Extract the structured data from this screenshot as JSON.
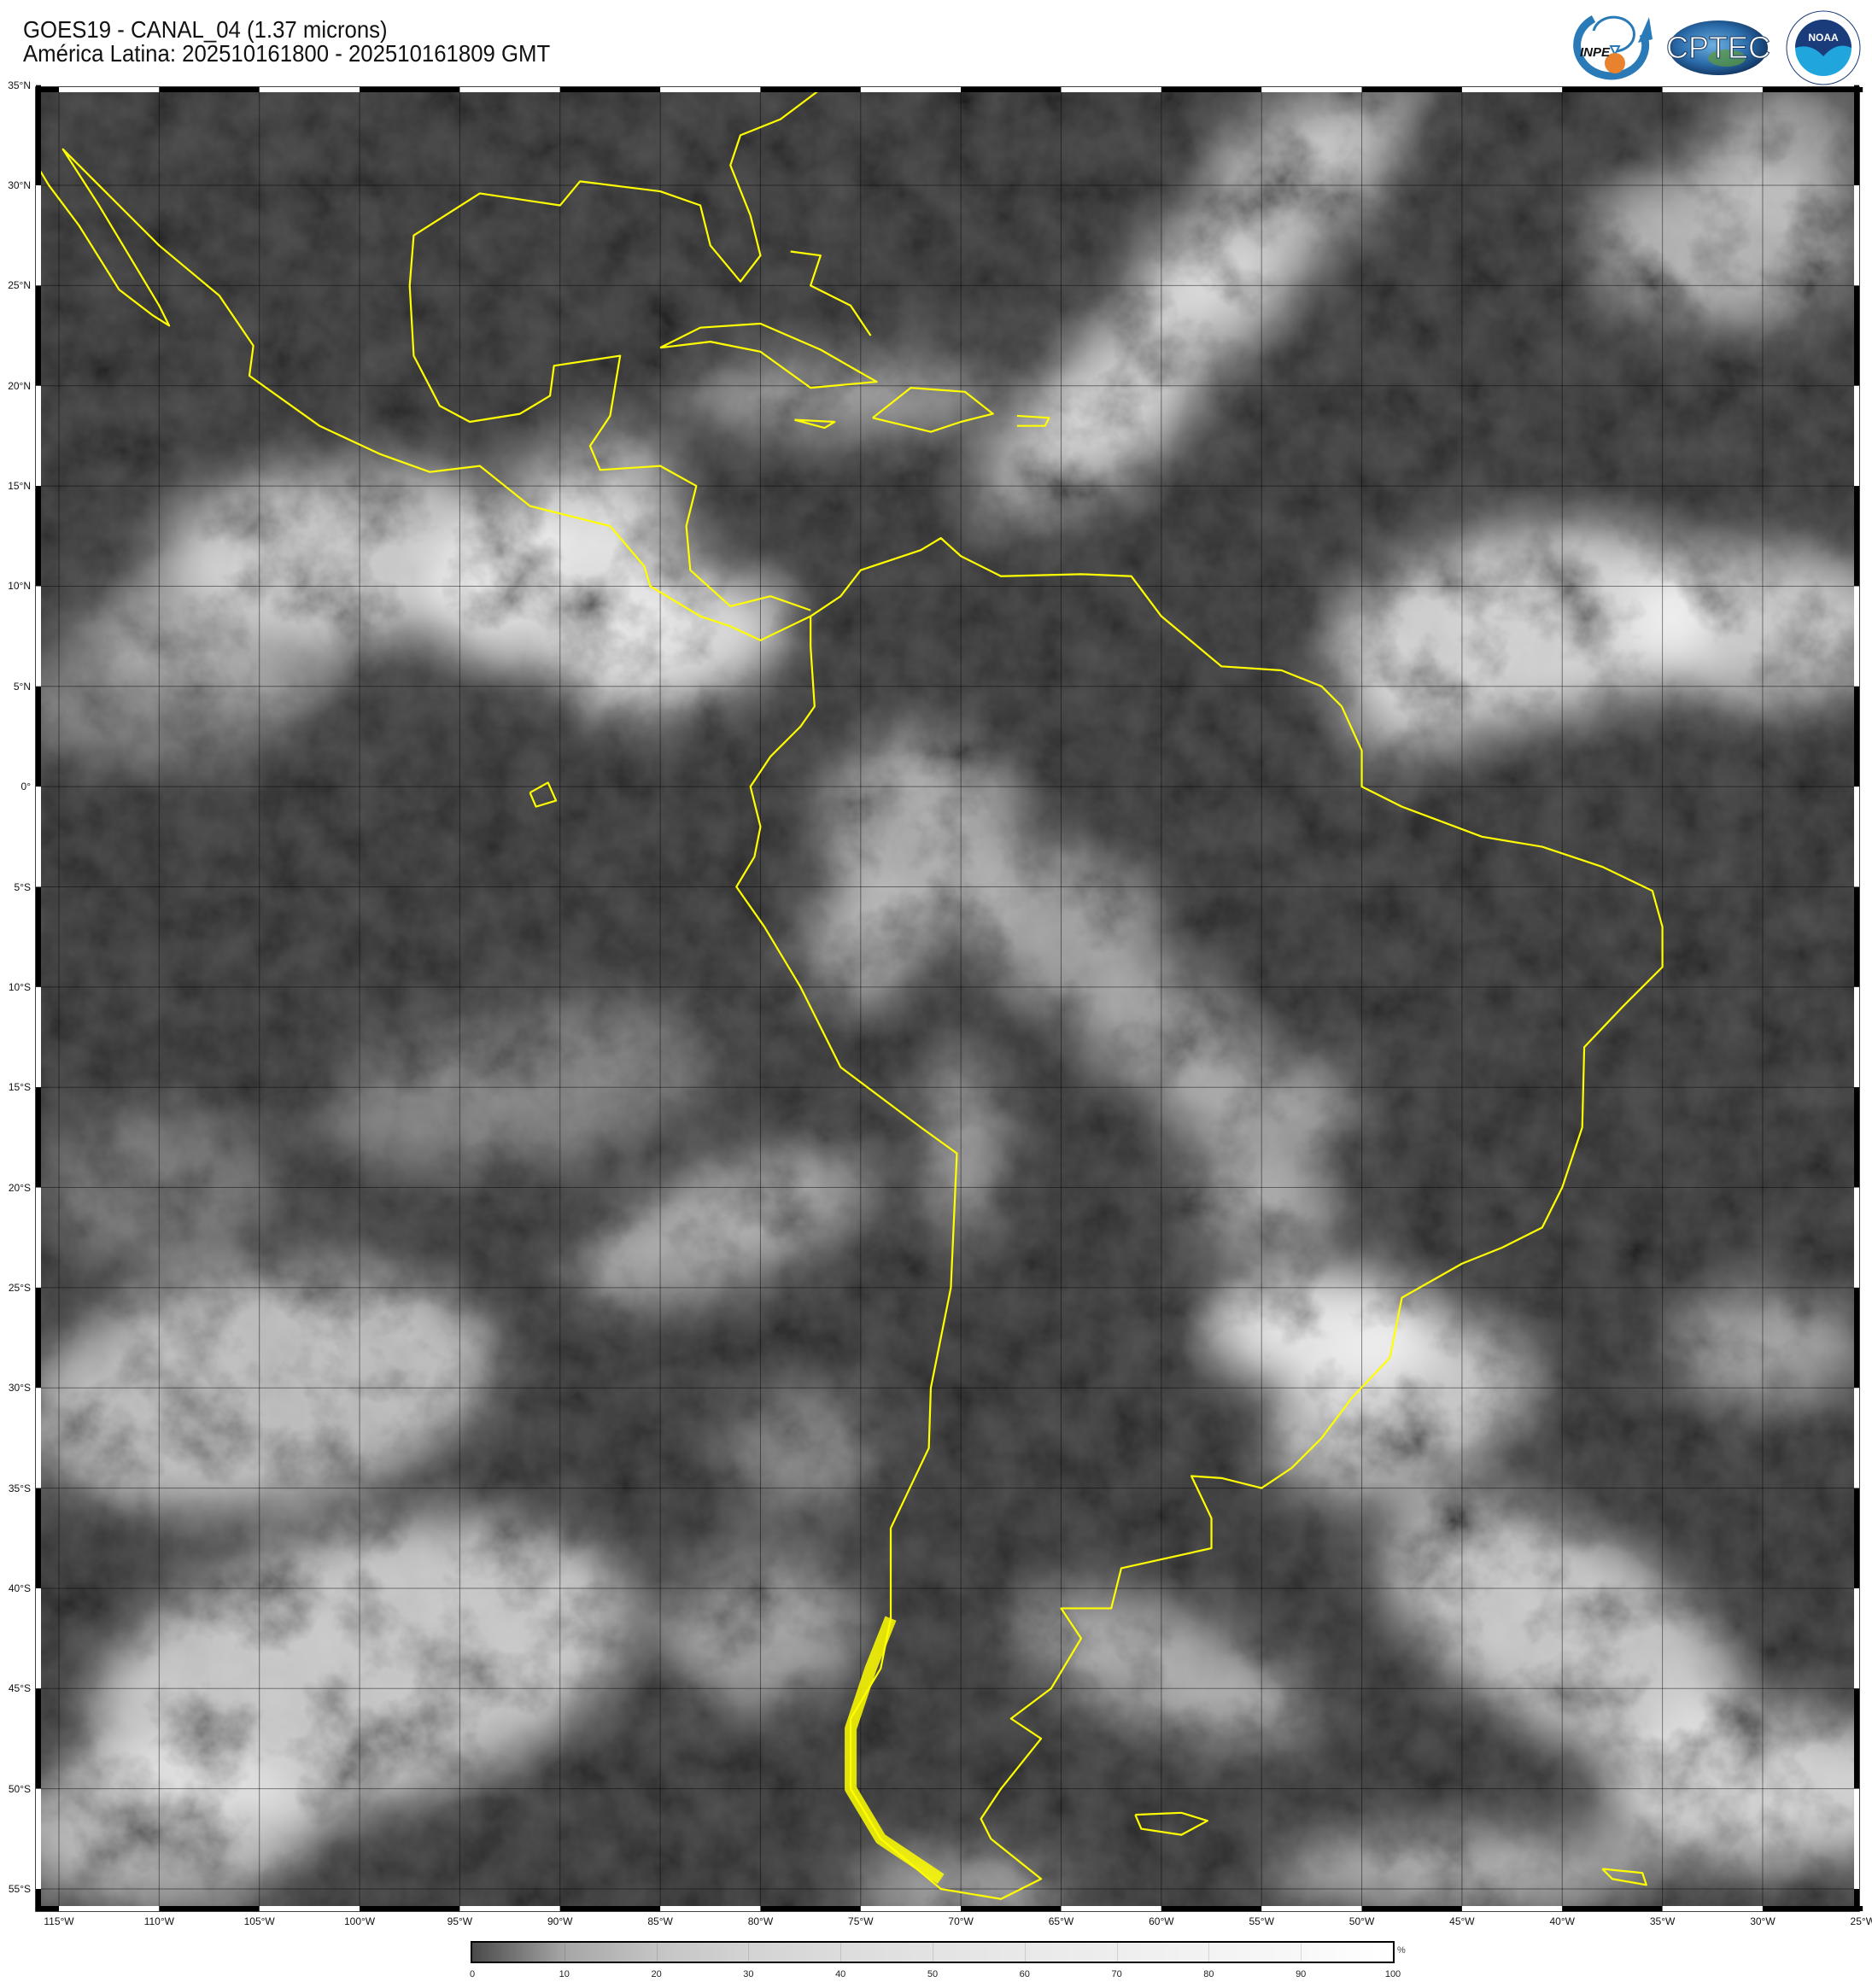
{
  "header": {
    "title_line1": "GOES19 - CANAL_04 (1.37 microns)",
    "title_line2": "América Latina: 202510161800 - 202510161809 GMT"
  },
  "logos": {
    "inpe": "INPE",
    "cptec": "CPTEC",
    "noaa": "NOAA"
  },
  "map": {
    "projection": "equirectangular",
    "lon_range": [
      -116.15,
      -24.95
    ],
    "lat_range": [
      -56.1,
      35.1
    ],
    "grid": true,
    "grid_step_deg": 5,
    "coastline_color": "#ffff00",
    "background_color": "#1c1c1c",
    "lat_labels": [
      "35°N",
      "30°N",
      "25°N",
      "20°N",
      "15°N",
      "10°N",
      "5°N",
      "0°",
      "5°S",
      "10°S",
      "15°S",
      "20°S",
      "25°S",
      "30°S",
      "35°S",
      "40°S",
      "45°S",
      "50°S",
      "55°S"
    ],
    "lat_values": [
      35,
      30,
      25,
      20,
      15,
      10,
      5,
      0,
      -5,
      -10,
      -15,
      -20,
      -25,
      -30,
      -35,
      -40,
      -45,
      -50,
      -55
    ],
    "lon_labels": [
      "115°W",
      "110°W",
      "105°W",
      "100°W",
      "95°W",
      "90°W",
      "85°W",
      "80°W",
      "75°W",
      "70°W",
      "65°W",
      "60°W",
      "55°W",
      "50°W",
      "45°W",
      "40°W",
      "35°W",
      "30°W",
      "25°W"
    ],
    "lon_values": [
      -115,
      -110,
      -105,
      -100,
      -95,
      -90,
      -85,
      -80,
      -75,
      -70,
      -65,
      -60,
      -55,
      -50,
      -45,
      -40,
      -35,
      -30,
      -25
    ]
  },
  "colorbar": {
    "unit": "%",
    "ticks": [
      "0",
      "10",
      "20",
      "30",
      "40",
      "50",
      "60",
      "70",
      "80",
      "90",
      "100"
    ],
    "range": [
      0,
      100
    ],
    "colors": [
      "#4a4a4a",
      "#ffffff"
    ]
  }
}
